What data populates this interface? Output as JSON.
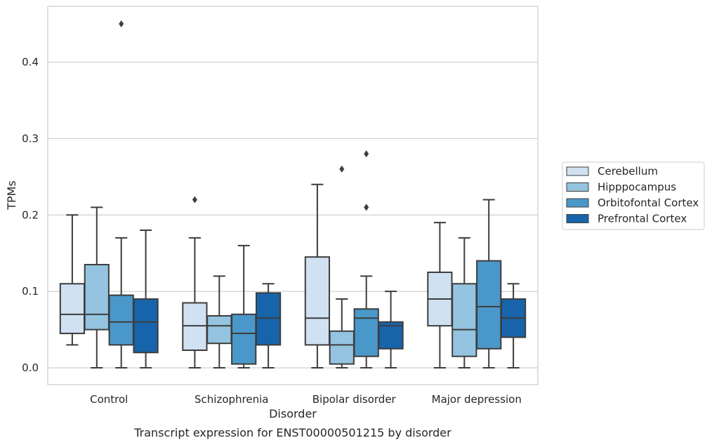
{
  "chart_data": {
    "type": "box",
    "title": "",
    "caption": "Transcript expression for ENST00000501215 by disorder",
    "xlabel": "Disorder",
    "ylabel": "TPMs",
    "ylim": [
      -0.022,
      0.473
    ],
    "yticks": [
      0.0,
      0.1,
      0.2,
      0.3,
      0.4
    ],
    "ytick_labels": [
      "0.0",
      "0.1",
      "0.2",
      "0.3",
      "0.4"
    ],
    "grid": "horizontal",
    "legend_position": "right",
    "categories": [
      "Control",
      "Schizophrenia",
      "Bipolar disorder",
      "Major depression"
    ],
    "series": [
      {
        "name": "Cerebellum",
        "color": "#d0e1f2",
        "boxes": [
          {
            "whislo": 0.03,
            "q1": 0.045,
            "med": 0.07,
            "q3": 0.11,
            "whishi": 0.2,
            "fliers": []
          },
          {
            "whislo": 0.0,
            "q1": 0.023,
            "med": 0.055,
            "q3": 0.085,
            "whishi": 0.17,
            "fliers": [
              0.22
            ]
          },
          {
            "whislo": 0.0,
            "q1": 0.03,
            "med": 0.065,
            "q3": 0.145,
            "whishi": 0.24,
            "fliers": []
          },
          {
            "whislo": 0.0,
            "q1": 0.055,
            "med": 0.09,
            "q3": 0.125,
            "whishi": 0.19,
            "fliers": []
          }
        ]
      },
      {
        "name": "Hipppocampus",
        "color": "#94c4df",
        "boxes": [
          {
            "whislo": 0.0,
            "q1": 0.05,
            "med": 0.07,
            "q3": 0.135,
            "whishi": 0.21,
            "fliers": []
          },
          {
            "whislo": 0.0,
            "q1": 0.032,
            "med": 0.055,
            "q3": 0.068,
            "whishi": 0.12,
            "fliers": []
          },
          {
            "whislo": 0.0,
            "q1": 0.005,
            "med": 0.03,
            "q3": 0.048,
            "whishi": 0.09,
            "fliers": [
              0.26
            ]
          },
          {
            "whislo": 0.0,
            "q1": 0.015,
            "med": 0.05,
            "q3": 0.11,
            "whishi": 0.17,
            "fliers": []
          }
        ]
      },
      {
        "name": "Orbitofontal Cortex",
        "color": "#4a98c9",
        "boxes": [
          {
            "whislo": 0.0,
            "q1": 0.03,
            "med": 0.06,
            "q3": 0.095,
            "whishi": 0.17,
            "fliers": [
              0.45
            ]
          },
          {
            "whislo": 0.0,
            "q1": 0.005,
            "med": 0.045,
            "q3": 0.07,
            "whishi": 0.16,
            "fliers": []
          },
          {
            "whislo": 0.0,
            "q1": 0.015,
            "med": 0.065,
            "q3": 0.077,
            "whishi": 0.12,
            "fliers": [
              0.21,
              0.28
            ]
          },
          {
            "whislo": 0.0,
            "q1": 0.025,
            "med": 0.08,
            "q3": 0.14,
            "whishi": 0.22,
            "fliers": []
          }
        ]
      },
      {
        "name": "Prefrontal Cortex",
        "color": "#1764ab",
        "boxes": [
          {
            "whislo": 0.0,
            "q1": 0.02,
            "med": 0.06,
            "q3": 0.09,
            "whishi": 0.18,
            "fliers": []
          },
          {
            "whislo": 0.0,
            "q1": 0.03,
            "med": 0.065,
            "q3": 0.098,
            "whishi": 0.11,
            "fliers": []
          },
          {
            "whislo": 0.0,
            "q1": 0.025,
            "med": 0.055,
            "q3": 0.06,
            "whishi": 0.1,
            "fliers": []
          },
          {
            "whislo": 0.0,
            "q1": 0.04,
            "med": 0.065,
            "q3": 0.09,
            "whishi": 0.11,
            "fliers": []
          }
        ]
      }
    ]
  }
}
